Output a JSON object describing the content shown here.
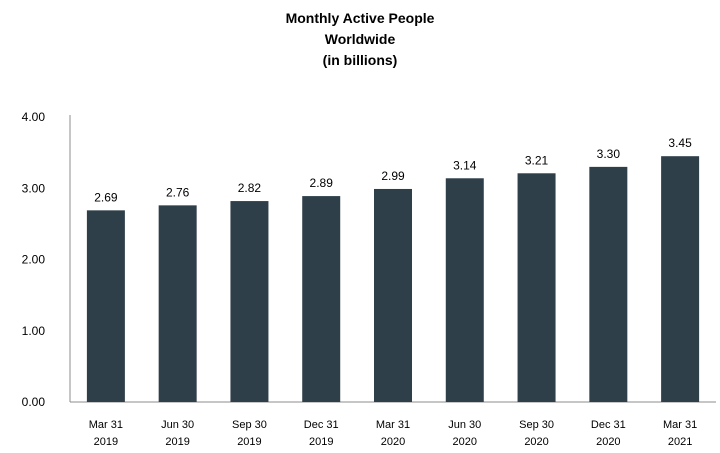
{
  "chart_data": {
    "type": "bar",
    "title_lines": [
      "Monthly Active People",
      "Worldwide",
      "(in billions)"
    ],
    "categories": [
      [
        "Mar 31",
        "2019"
      ],
      [
        "Jun 30",
        "2019"
      ],
      [
        "Sep 30",
        "2019"
      ],
      [
        "Dec 31",
        "2019"
      ],
      [
        "Mar 31",
        "2020"
      ],
      [
        "Jun 30",
        "2020"
      ],
      [
        "Sep 30",
        "2020"
      ],
      [
        "Dec 31",
        "2020"
      ],
      [
        "Mar 31",
        "2021"
      ]
    ],
    "values": [
      2.69,
      2.76,
      2.82,
      2.89,
      2.99,
      3.14,
      3.21,
      3.3,
      3.45
    ],
    "value_labels": [
      "2.69",
      "2.76",
      "2.82",
      "2.89",
      "2.99",
      "3.14",
      "3.21",
      "3.30",
      "3.45"
    ],
    "y_ticks": [
      "0.00",
      "1.00",
      "2.00",
      "3.00",
      "4.00"
    ],
    "ylim": [
      0,
      4
    ],
    "grid": false,
    "bar_color": "#2f3f4a",
    "axis_color": "#8c8c8c"
  }
}
